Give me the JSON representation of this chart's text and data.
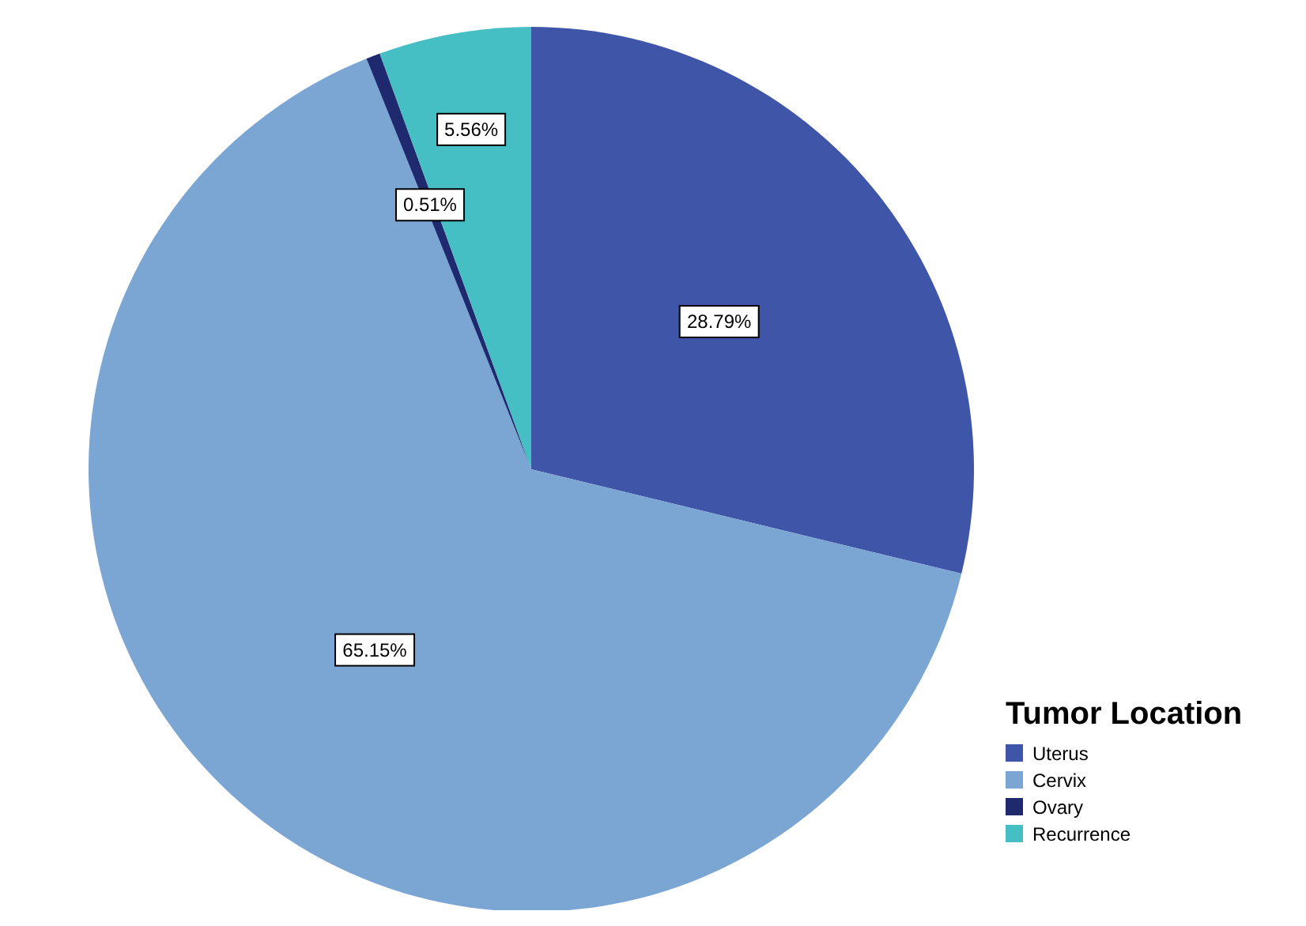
{
  "chart_data": {
    "type": "pie",
    "categories": [
      "Uterus",
      "Cervix",
      "Ovary",
      "Recurrence"
    ],
    "values": [
      28.79,
      65.15,
      0.51,
      5.56
    ],
    "colors": [
      "#3f55a8",
      "#7ba6d4",
      "#1f2a6e",
      "#45bfc4"
    ],
    "value_labels": [
      "28.79%",
      "65.15%",
      "0.51%",
      "5.56%"
    ],
    "legend_title": "Tumor Location",
    "legend": "bottom right"
  }
}
